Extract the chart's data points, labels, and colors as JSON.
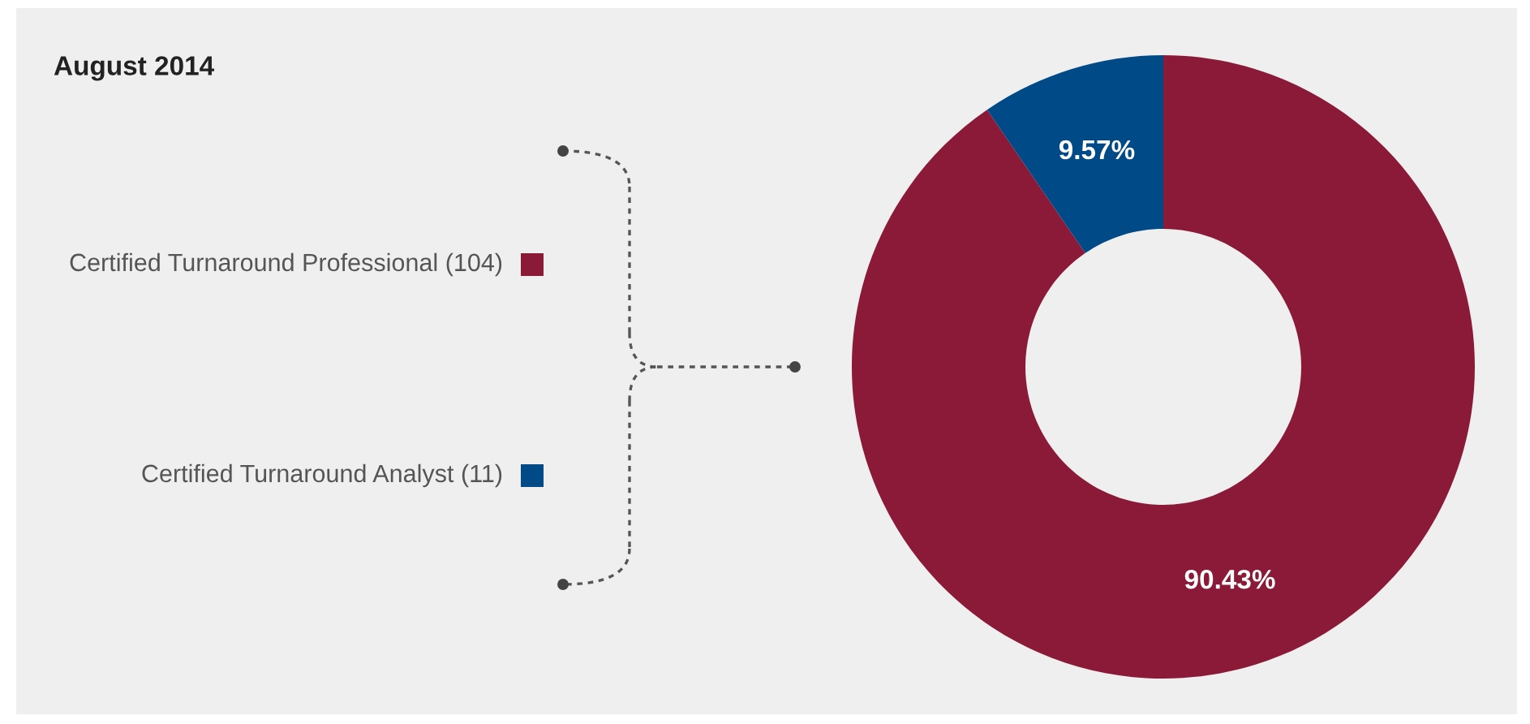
{
  "chart_data": {
    "type": "donut",
    "title": "August 2014",
    "categories": [
      "Certified Turnaround Professional (104)",
      "Certified Turnaround Analyst (11)"
    ],
    "values": [
      90.43,
      9.57
    ],
    "colors": [
      "#8b1a38",
      "#004a87"
    ],
    "value_labels": [
      "90.43%",
      "9.57%"
    ],
    "legend": "left"
  }
}
